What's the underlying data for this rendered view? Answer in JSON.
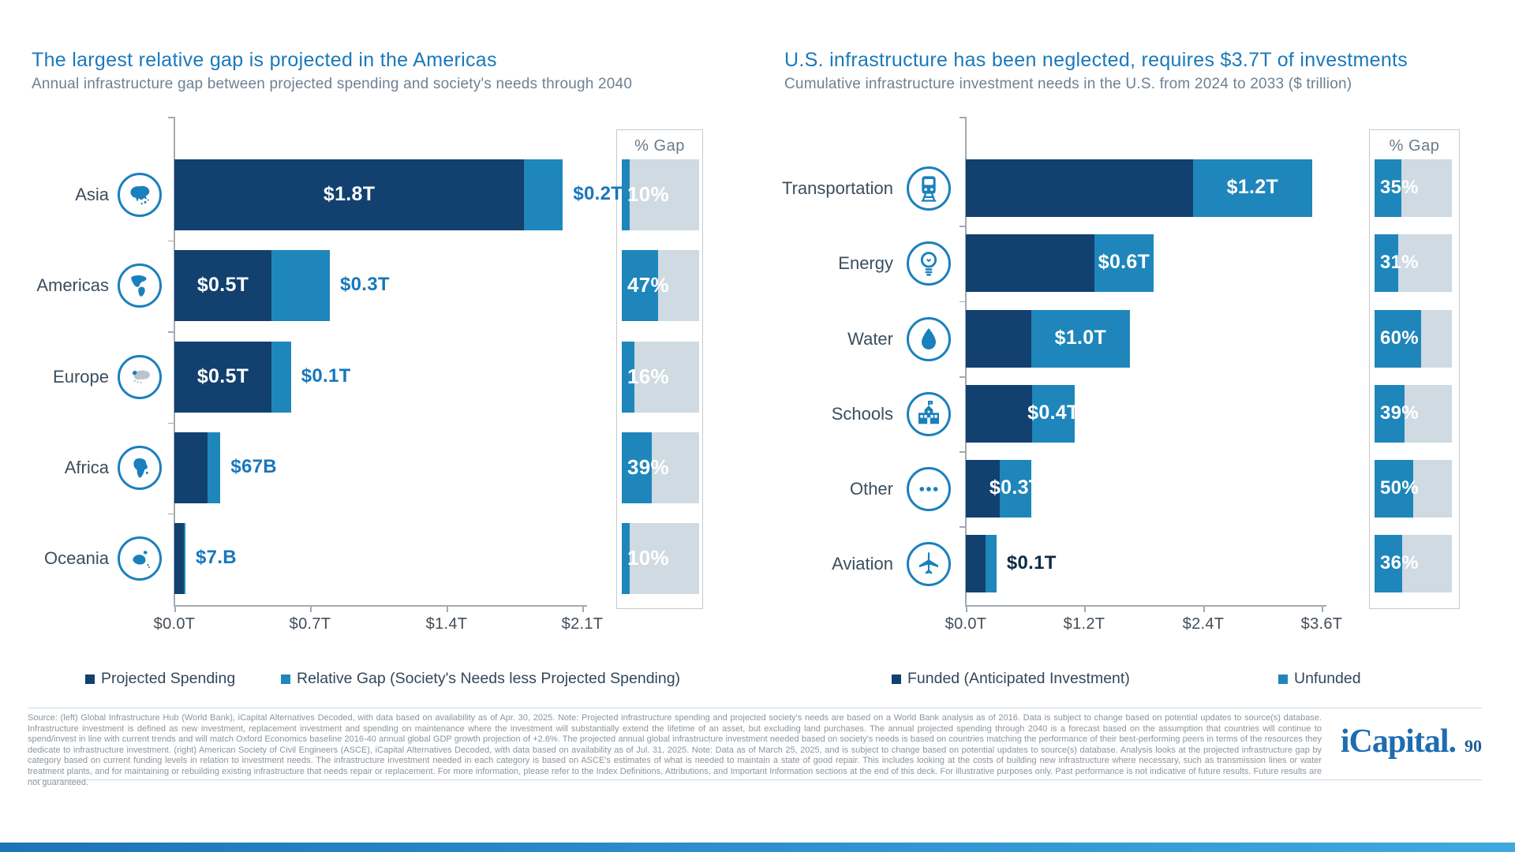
{
  "chart_data": [
    {
      "type": "bar",
      "orientation": "horizontal",
      "stacked": true,
      "title": "The largest relative gap is projected in the Americas",
      "subtitle": "Annual infrastructure gap between projected spending and society's needs through 2040",
      "categories": [
        "Asia",
        "Americas",
        "Europe",
        "Africa",
        "Oceania"
      ],
      "series": [
        {
          "name": "Projected Spending",
          "color": "#12406f",
          "values": [
            1.8,
            0.5,
            0.5,
            0.17,
            0.05
          ]
        },
        {
          "name": "Relative Gap (Society's Needs less Projected Spending)",
          "color": "#1e86bb",
          "values": [
            0.2,
            0.3,
            0.1,
            0.067,
            0.007
          ]
        }
      ],
      "x_ticks": [
        "$0.0T",
        "$0.7T",
        "$1.4T",
        "$2.1T"
      ],
      "xlim": [
        0,
        2.1
      ],
      "grid": false,
      "legend_position": "bottom",
      "inside_label_on": "series1",
      "outside_label_color": "#1778bc",
      "rows": [
        {
          "category": "Asia",
          "icon": "asia-map-icon",
          "inside_label": "$1.8T",
          "outside_label": "$0.2T",
          "gap_pct": 10,
          "gap_pct_label": "10%"
        },
        {
          "category": "Americas",
          "icon": "americas-map-icon",
          "inside_label": "$0.5T",
          "outside_label": "$0.3T",
          "gap_pct": 47,
          "gap_pct_label": "47%"
        },
        {
          "category": "Europe",
          "icon": "europe-map-icon",
          "inside_label": "$0.5T",
          "outside_label": "$0.1T",
          "gap_pct": 16,
          "gap_pct_label": "16%"
        },
        {
          "category": "Africa",
          "icon": "africa-map-icon",
          "inside_label": "",
          "outside_label": "$67B",
          "gap_pct": 39,
          "gap_pct_label": "39%"
        },
        {
          "category": "Oceania",
          "icon": "oceania-map-icon",
          "inside_label": "",
          "outside_label": "$7.B",
          "gap_pct": 10,
          "gap_pct_label": "10%"
        }
      ],
      "gap_panel": {
        "header": "% Gap",
        "values": [
          10,
          47,
          16,
          39,
          10
        ]
      }
    },
    {
      "type": "bar",
      "orientation": "horizontal",
      "stacked": true,
      "title": "U.S. infrastructure has been neglected, requires $3.7T of investments",
      "subtitle": "Cumulative infrastructure investment needs in the U.S. from 2024 to 2033 ($ trillion)",
      "categories": [
        "Transportation",
        "Energy",
        "Water",
        "Schools",
        "Other",
        "Aviation"
      ],
      "series": [
        {
          "name": "Funded (Anticipated Investment)",
          "color": "#12406f",
          "values": [
            2.3,
            1.3,
            0.66,
            0.67,
            0.34,
            0.2
          ]
        },
        {
          "name": "Unfunded",
          "color": "#1e86bb",
          "values": [
            1.2,
            0.6,
            1.0,
            0.43,
            0.32,
            0.11
          ]
        }
      ],
      "x_ticks": [
        "$0.0T",
        "$1.2T",
        "$2.4T",
        "$3.6T"
      ],
      "xlim": [
        0,
        3.6
      ],
      "grid": false,
      "legend_position": "bottom",
      "inside_label_on": "series2",
      "outside_label_color": "#0f2b45",
      "rows": [
        {
          "category": "Transportation",
          "icon": "train-icon",
          "inside_label": "$1.2T",
          "outside_label": "",
          "gap_pct": 35,
          "gap_pct_label": "35%"
        },
        {
          "category": "Energy",
          "icon": "lightbulb-icon",
          "inside_label": "$0.6T",
          "outside_label": "",
          "gap_pct": 31,
          "gap_pct_label": "31%"
        },
        {
          "category": "Water",
          "icon": "water-drop-icon",
          "inside_label": "$1.0T",
          "outside_label": "",
          "gap_pct": 60,
          "gap_pct_label": "60%"
        },
        {
          "category": "Schools",
          "icon": "school-icon",
          "inside_label": "$0.4T",
          "outside_label": "",
          "gap_pct": 39,
          "gap_pct_label": "39%"
        },
        {
          "category": "Other",
          "icon": "ellipsis-icon",
          "inside_label": "$0.3T",
          "outside_label": "",
          "gap_pct": 50,
          "gap_pct_label": "50%"
        },
        {
          "category": "Aviation",
          "icon": "airplane-icon",
          "inside_label": "",
          "outside_label": "$0.1T",
          "gap_pct": 36,
          "gap_pct_label": "36%"
        }
      ],
      "gap_panel": {
        "header": "% Gap",
        "values": [
          35,
          31,
          60,
          39,
          50,
          36
        ]
      }
    }
  ],
  "footer": {
    "source_text": "Source: (left) Global Infrastructure Hub (World Bank), iCapital Alternatives Decoded, with data based on availability as of Apr. 30, 2025. Note: Projected infrastructure spending and projected society's needs are based on a World Bank analysis as of 2016. Data is subject to change based on potential updates to source(s) database. Infrastructure investment is defined as new investment, replacement investment and spending on maintenance where the investment will substantially extend the lifetime of an asset, but excluding land purchases. The annual projected spending through 2040 is a forecast based on the assumption that countries will continue to spend/invest in line with current trends and will match Oxford Economics baseline 2016-40 annual global GDP growth projection of +2.6%. The projected annual global infrastructure investment needed based on society's needs is based on countries matching the performance of their best-performing peers in terms of the resources they dedicate to infrastructure investment. (right) American Society of Civil Engineers (ASCE), iCapital Alternatives Decoded, with data based on availability as of Jul. 31, 2025. Note: Data as of March 25, 2025, and is subject to change based on potential updates to source(s) database. Analysis looks at the projected infrastructure gap by category based on current funding levels in relation to investment needs. The infrastructure investment needed in each category is based on ASCE's estimates of what is needed to maintain a state of good repair. This includes looking at the costs of building new infrastructure where necessary, such as transmission lines or water treatment plants, and for maintaining or rebuilding existing infrastructure that needs repair or replacement. For more information, please refer to the Index Definitions, Attributions, and Important Information sections at the end of this deck. For illustrative purposes only. Past performance is not indicative of future results. Future results are not guaranteed.",
    "logo_text": "iCapital",
    "logo_period": ".",
    "page_number": "90"
  },
  "colors": {
    "navy": "#12406f",
    "medium_blue": "#1e86bb",
    "gap_fill": "#1e86bb",
    "gap_rest": "#cfdae2",
    "title_blue": "#1a79bb",
    "icon_blue": "#1a80bd",
    "europe_gray": "#b9c5ce",
    "bottom_accent": "#2f93cf"
  }
}
